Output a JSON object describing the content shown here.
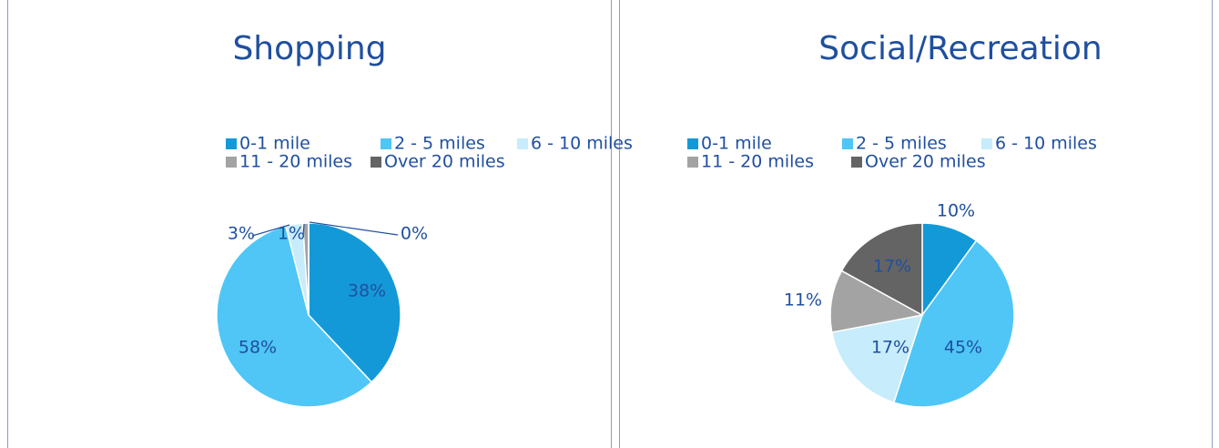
{
  "chart_data": [
    {
      "type": "pie",
      "title": "Shopping",
      "categories": [
        "0-1 mile",
        "2 - 5 miles",
        "6 - 10 miles",
        "11 - 20 miles",
        "Over 20 miles"
      ],
      "values": [
        38,
        58,
        3,
        1,
        0
      ],
      "value_labels": [
        "38%",
        "58%",
        "3%",
        "1%",
        "0%"
      ],
      "colors": [
        "#1499d8",
        "#4fc6f6",
        "#c7ecfb",
        "#a3a3a3",
        "#646464"
      ]
    },
    {
      "type": "pie",
      "title": "Social/Recreation",
      "categories": [
        "0-1 mile",
        "2 - 5 miles",
        "6 - 10 miles",
        "11 - 20 miles",
        "Over 20 miles"
      ],
      "values": [
        10,
        45,
        17,
        11,
        17
      ],
      "value_labels": [
        "10%",
        "45%",
        "17%",
        "11%",
        "17%"
      ],
      "colors": [
        "#1499d8",
        "#4fc6f6",
        "#c7ecfb",
        "#a3a3a3",
        "#646464"
      ]
    }
  ]
}
